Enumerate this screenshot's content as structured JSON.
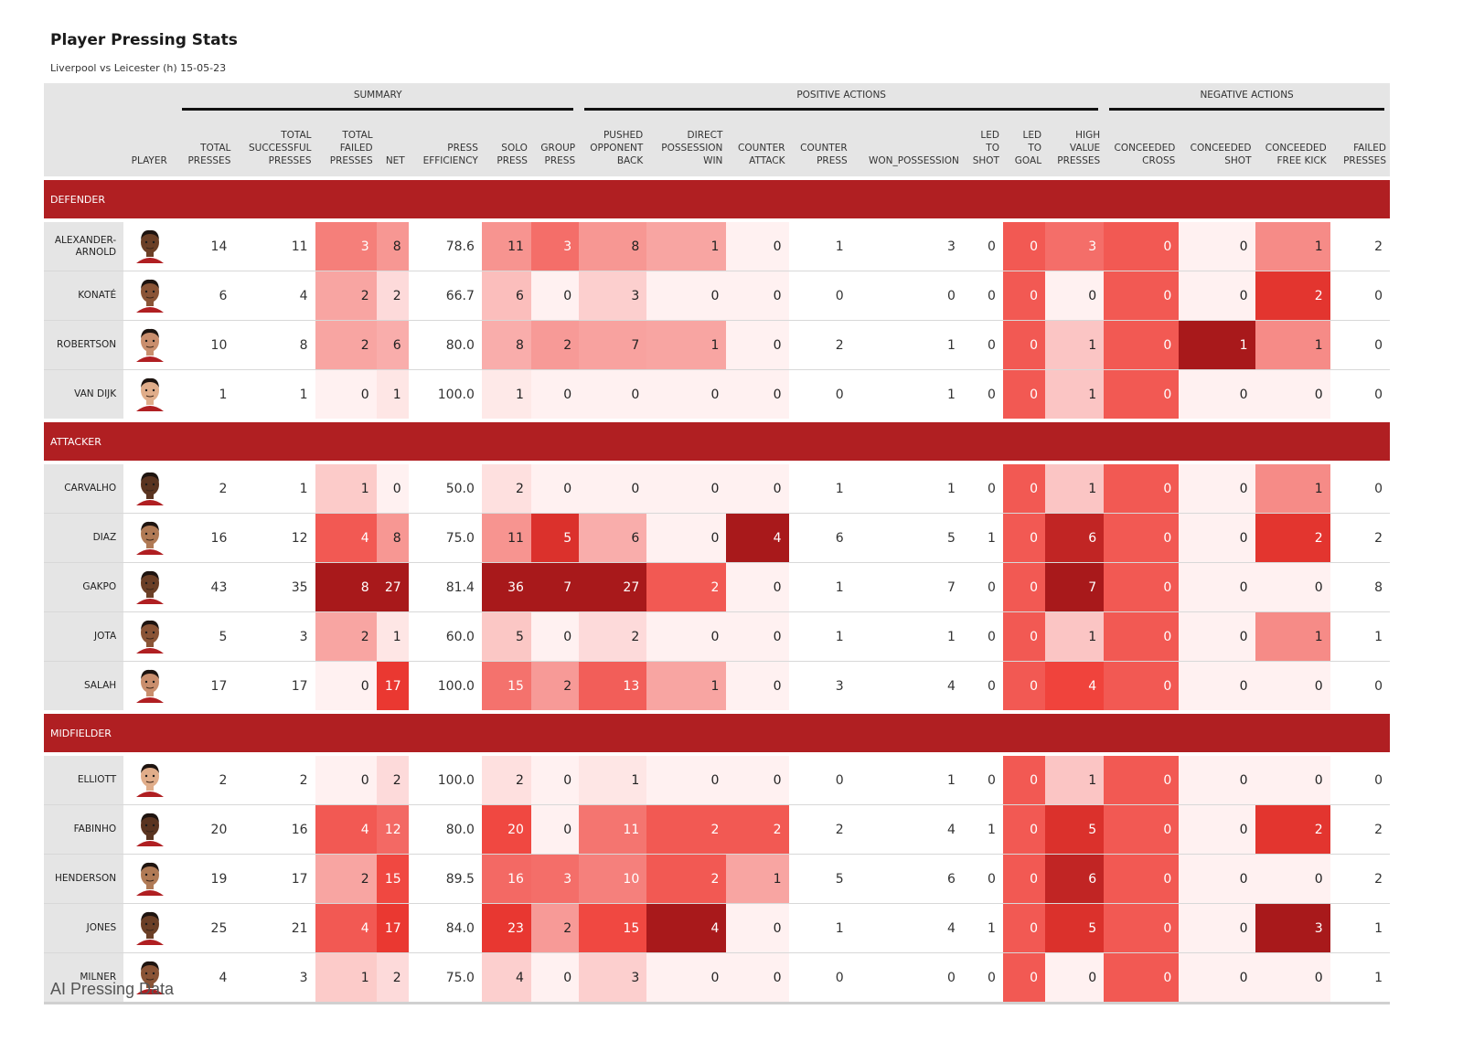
{
  "title": "Player Pressing Stats",
  "subtitle": "Liverpool vs Leicester (h) 15-05-23",
  "footer": "AI Pressing Data",
  "colors": {
    "header_bg": "#e5e5e5",
    "position_band": "#b01f22",
    "cell_min": "#fff1f1",
    "cell_mid": "#ef3a33",
    "cell_max": "#a8191b"
  },
  "groups": [
    {
      "label": "",
      "span": 2
    },
    {
      "label": "SUMMARY",
      "span": 7
    },
    {
      "label": "POSITIVE ACTIONS",
      "span": 8
    },
    {
      "label": "NEGATIVE ACTIONS",
      "span": 4
    }
  ],
  "chart_data": {
    "type": "table",
    "title": "Player Pressing Stats",
    "subtitle": "Liverpool vs Leicester (h) 15-05-23",
    "player_header": "PLAYER",
    "columns": [
      {
        "key": "total_presses",
        "label": "TOTAL\nPRESSES",
        "shaded": false
      },
      {
        "key": "total_successful",
        "label": "TOTAL\nSUCCESSFUL\nPRESSES",
        "shaded": false
      },
      {
        "key": "total_failed",
        "label": "TOTAL\nFAILED\nPRESSES",
        "shaded": true
      },
      {
        "key": "net",
        "label": "NET",
        "shaded": true
      },
      {
        "key": "press_efficiency",
        "label": "PRESS\nEFFICIENCY",
        "shaded": false
      },
      {
        "key": "solo",
        "label": "SOLO\nPRESS",
        "shaded": true
      },
      {
        "key": "group",
        "label": "GROUP\nPRESS",
        "shaded": true
      },
      {
        "key": "pushed_back",
        "label": "PUSHED\nOPPONENT\nBACK",
        "shaded": true
      },
      {
        "key": "direct_win",
        "label": "DIRECT\nPOSSESSION\nWIN",
        "shaded": true
      },
      {
        "key": "counter_attack",
        "label": "COUNTER\nATTACK",
        "shaded": true
      },
      {
        "key": "counter_press",
        "label": "COUNTER\nPRESS",
        "shaded": false
      },
      {
        "key": "won_possession",
        "label": "WON_POSSESSION",
        "shaded": false
      },
      {
        "key": "led_to_shot",
        "label": "LED\nTO\nSHOT",
        "shaded": false
      },
      {
        "key": "led_to_goal",
        "label": "LED\nTO\nGOAL",
        "shaded": true
      },
      {
        "key": "high_value",
        "label": "HIGH\nVALUE\nPRESSES",
        "shaded": true
      },
      {
        "key": "conceded_cross",
        "label": "CONCEEDED\nCROSS",
        "shaded": true
      },
      {
        "key": "conceded_shot",
        "label": "CONCEEDED\nSHOT",
        "shaded": true
      },
      {
        "key": "conceded_fk",
        "label": "CONCEEDED\nFREE KICK",
        "shaded": true
      },
      {
        "key": "failed_presses",
        "label": "FAILED\nPRESSES",
        "shaded": false
      }
    ],
    "sections": [
      {
        "position": "DEFENDER",
        "players": [
          {
            "name": "ALEXANDER-\nARNOLD",
            "values": [
              "14",
              "11",
              "3",
              "8",
              "78.6",
              "11",
              "3",
              "8",
              "1",
              "0",
              "1",
              "3",
              "0",
              "0",
              "3",
              "0",
              "0",
              "1",
              "2"
            ]
          },
          {
            "name": "KONATÉ",
            "values": [
              "6",
              "4",
              "2",
              "2",
              "66.7",
              "6",
              "0",
              "3",
              "0",
              "0",
              "0",
              "0",
              "0",
              "0",
              "0",
              "0",
              "0",
              "2",
              "0"
            ]
          },
          {
            "name": "ROBERTSON",
            "values": [
              "10",
              "8",
              "2",
              "6",
              "80.0",
              "8",
              "2",
              "7",
              "1",
              "0",
              "2",
              "1",
              "0",
              "0",
              "1",
              "0",
              "1",
              "1",
              "0"
            ]
          },
          {
            "name": "VAN DIJK",
            "values": [
              "1",
              "1",
              "0",
              "1",
              "100.0",
              "1",
              "0",
              "0",
              "0",
              "0",
              "0",
              "1",
              "0",
              "0",
              "1",
              "0",
              "0",
              "0",
              "0"
            ]
          }
        ]
      },
      {
        "position": "ATTACKER",
        "players": [
          {
            "name": "CARVALHO",
            "values": [
              "2",
              "1",
              "1",
              "0",
              "50.0",
              "2",
              "0",
              "0",
              "0",
              "0",
              "1",
              "1",
              "0",
              "0",
              "1",
              "0",
              "0",
              "1",
              "0"
            ]
          },
          {
            "name": "DIAZ",
            "values": [
              "16",
              "12",
              "4",
              "8",
              "75.0",
              "11",
              "5",
              "6",
              "0",
              "4",
              "6",
              "5",
              "1",
              "0",
              "6",
              "0",
              "0",
              "2",
              "2"
            ]
          },
          {
            "name": "GAKPO",
            "values": [
              "43",
              "35",
              "8",
              "27",
              "81.4",
              "36",
              "7",
              "27",
              "2",
              "0",
              "1",
              "7",
              "0",
              "0",
              "7",
              "0",
              "0",
              "0",
              "8"
            ]
          },
          {
            "name": "JOTA",
            "values": [
              "5",
              "3",
              "2",
              "1",
              "60.0",
              "5",
              "0",
              "2",
              "0",
              "0",
              "1",
              "1",
              "0",
              "0",
              "1",
              "0",
              "0",
              "1",
              "1"
            ]
          },
          {
            "name": "SALAH",
            "values": [
              "17",
              "17",
              "0",
              "17",
              "100.0",
              "15",
              "2",
              "13",
              "1",
              "0",
              "3",
              "4",
              "0",
              "0",
              "4",
              "0",
              "0",
              "0",
              "0"
            ]
          }
        ]
      },
      {
        "position": "MIDFIELDER",
        "players": [
          {
            "name": "ELLIOTT",
            "values": [
              "2",
              "2",
              "0",
              "2",
              "100.0",
              "2",
              "0",
              "1",
              "0",
              "0",
              "0",
              "1",
              "0",
              "0",
              "1",
              "0",
              "0",
              "0",
              "0"
            ]
          },
          {
            "name": "FABINHO",
            "values": [
              "20",
              "16",
              "4",
              "12",
              "80.0",
              "20",
              "0",
              "11",
              "2",
              "2",
              "2",
              "4",
              "1",
              "0",
              "5",
              "0",
              "0",
              "2",
              "2"
            ]
          },
          {
            "name": "HENDERSON",
            "values": [
              "19",
              "17",
              "2",
              "15",
              "89.5",
              "16",
              "3",
              "10",
              "2",
              "1",
              "5",
              "6",
              "0",
              "0",
              "6",
              "0",
              "0",
              "0",
              "2"
            ]
          },
          {
            "name": "JONES",
            "values": [
              "25",
              "21",
              "4",
              "17",
              "84.0",
              "23",
              "2",
              "15",
              "4",
              "0",
              "1",
              "4",
              "1",
              "0",
              "5",
              "0",
              "0",
              "3",
              "1"
            ]
          },
          {
            "name": "MILNER",
            "values": [
              "4",
              "3",
              "1",
              "2",
              "75.0",
              "4",
              "0",
              "3",
              "0",
              "0",
              "0",
              "0",
              "0",
              "0",
              "0",
              "0",
              "0",
              "0",
              "1"
            ]
          }
        ]
      }
    ]
  }
}
